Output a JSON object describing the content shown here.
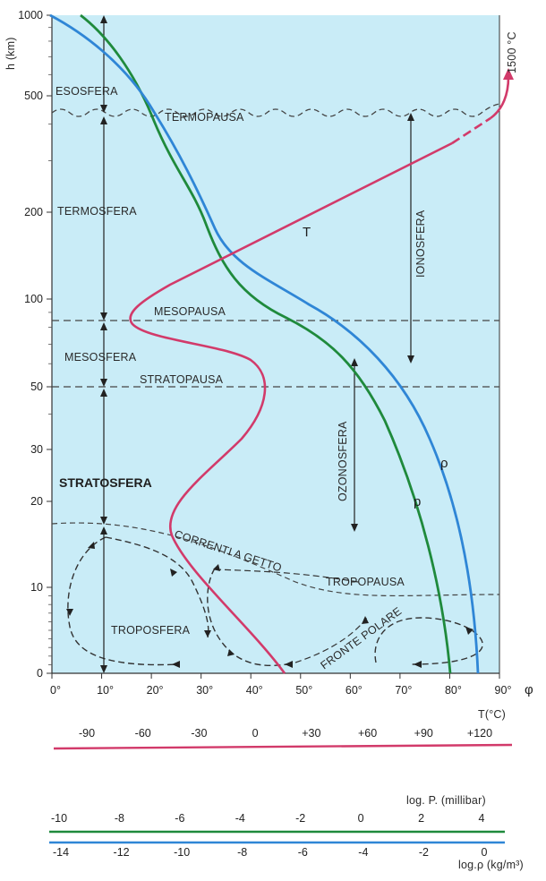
{
  "axes": {
    "y_title": "h (km)",
    "y_ticks": [
      {
        "v": 0,
        "label": "0"
      },
      {
        "v": 10,
        "label": "10"
      },
      {
        "v": 20,
        "label": "20"
      },
      {
        "v": 30,
        "label": "30"
      },
      {
        "v": 50,
        "label": "50"
      },
      {
        "v": 100,
        "label": "100"
      },
      {
        "v": 200,
        "label": "200"
      },
      {
        "v": 500,
        "label": "500"
      },
      {
        "v": 1000,
        "label": "1000"
      }
    ],
    "x_ticks": [
      "0°",
      "10°",
      "20°",
      "30°",
      "40°",
      "50°",
      "60°",
      "70°",
      "80°",
      "90°"
    ],
    "x_symbol": "φ"
  },
  "layers": {
    "esosfera": "ESOSFERA",
    "termopausa": "TERMOPAUSA",
    "termosfera": "TERMOSFERA",
    "mesopausa": "MESOPAUSA",
    "mesosfera": "MESOSFERA",
    "stratopausa": "STRATOPAUSA",
    "stratosfera": "STRATOSFERA",
    "troposfera": "TROPOSFERA",
    "tropopausa": "TROPOPAUSA",
    "correnti": "CORRENTI A GETTO",
    "fronte": "FRONTE POLARE",
    "ionosfera": "IONOSFERA",
    "ozonosfera": "OZONOSFERA"
  },
  "curves": {
    "temperature_label": "T",
    "density_label": "ρ",
    "pressure_label": "p",
    "top_temp": "1500 °C"
  },
  "scales": {
    "temperature": {
      "title": "T(°C)",
      "ticks": [
        "-90",
        "-60",
        "-30",
        "0",
        "+30",
        "+60",
        "+90",
        "+120"
      ],
      "color": "#d23a6a"
    },
    "pressure": {
      "title": "log. P. (millibar)",
      "ticks": [
        "-10",
        "-8",
        "-6",
        "-4",
        "-2",
        "0",
        "2",
        "4"
      ],
      "color": "#1f8a3c"
    },
    "density": {
      "title": "log.ρ (kg/m³)",
      "ticks": [
        "-14",
        "-12",
        "-10",
        "-8",
        "-6",
        "-4",
        "-2",
        "0"
      ],
      "color": "#2f86d6"
    }
  },
  "colors": {
    "background": "#c9ecf7",
    "temperature": "#d23a6a",
    "pressure": "#1f8a3c",
    "density": "#2f86d6"
  }
}
